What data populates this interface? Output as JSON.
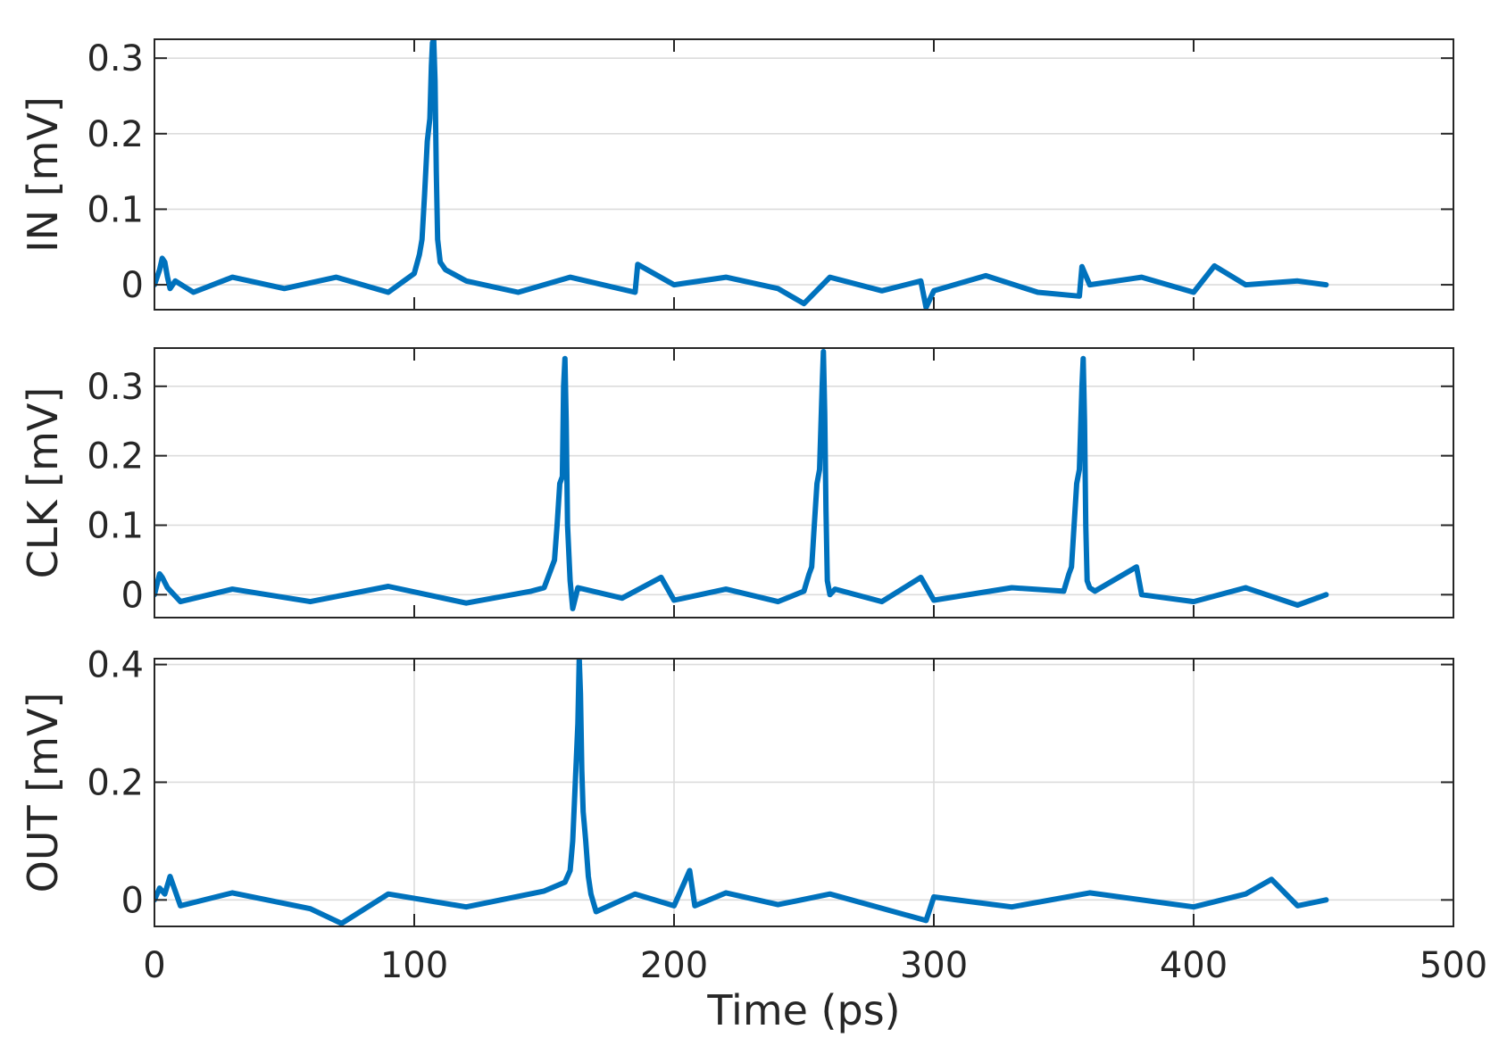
{
  "chart_data": [
    {
      "type": "line",
      "ylabel": "IN [mV]",
      "xlim": [
        0,
        500
      ],
      "ylim": [
        -0.033,
        0.325
      ],
      "yticks": [
        0,
        0.1,
        0.2,
        0.3
      ],
      "ytick_labels": [
        "0",
        "0.1",
        "0.2",
        "0.3"
      ],
      "grid": "horizontal",
      "color": "#0072BD",
      "series": [
        {
          "x": [
            0,
            2,
            3,
            4,
            5,
            6,
            8,
            15,
            30,
            50,
            70,
            90,
            96,
            100,
            102,
            103,
            104,
            105,
            106,
            106.6,
            107,
            107.5,
            108,
            108.5,
            109,
            110,
            112,
            120,
            140,
            160,
            185,
            186,
            200,
            220,
            240,
            250,
            260,
            280,
            295,
            297,
            300,
            320,
            340,
            356,
            357,
            360,
            380,
            400,
            408,
            420,
            440,
            451
          ],
          "y": [
            0,
            0.02,
            0.035,
            0.03,
            0.01,
            -0.005,
            0.005,
            -0.01,
            0.01,
            -0.005,
            0.01,
            -0.01,
            0.005,
            0.015,
            0.04,
            0.06,
            0.12,
            0.19,
            0.22,
            0.29,
            0.32,
            0.325,
            0.27,
            0.15,
            0.06,
            0.03,
            0.02,
            0.005,
            -0.01,
            0.01,
            -0.01,
            0.027,
            0,
            0.01,
            -0.005,
            -0.025,
            0.01,
            -0.008,
            0.005,
            -0.03,
            -0.008,
            0.012,
            -0.01,
            -0.015,
            0.024,
            0,
            0.01,
            -0.01,
            0.025,
            0,
            0.005,
            0
          ]
        }
      ]
    },
    {
      "type": "line",
      "ylabel": "CLK [mV]",
      "xlim": [
        0,
        500
      ],
      "ylim": [
        -0.033,
        0.355
      ],
      "yticks": [
        0,
        0.1,
        0.2,
        0.3
      ],
      "ytick_labels": [
        "0",
        "0.1",
        "0.2",
        "0.3"
      ],
      "grid": "horizontal",
      "color": "#0072BD",
      "series": [
        {
          "x": [
            0,
            1,
            2,
            3,
            5,
            10,
            30,
            60,
            90,
            120,
            145,
            150,
            152,
            154,
            155,
            156,
            157,
            157.5,
            158,
            158.5,
            159,
            160,
            161,
            163,
            180,
            195,
            200,
            220,
            240,
            250,
            252,
            253,
            254,
            255,
            256,
            257,
            257.5,
            258,
            258.5,
            259,
            260,
            262,
            280,
            295,
            300,
            330,
            350,
            352,
            353,
            354,
            355,
            356,
            357,
            357.5,
            358,
            358.5,
            359,
            360,
            362,
            378,
            380,
            400,
            420,
            440,
            451
          ],
          "y": [
            0,
            0.015,
            0.03,
            0.025,
            0.01,
            -0.01,
            0.008,
            -0.01,
            0.012,
            -0.012,
            0.005,
            0.01,
            0.03,
            0.05,
            0.1,
            0.16,
            0.17,
            0.3,
            0.34,
            0.25,
            0.1,
            0.02,
            -0.02,
            0.01,
            -0.005,
            0.025,
            -0.008,
            0.008,
            -0.01,
            0.005,
            0.03,
            0.04,
            0.1,
            0.16,
            0.18,
            0.3,
            0.35,
            0.26,
            0.12,
            0.02,
            0,
            0.008,
            -0.01,
            0.025,
            -0.008,
            0.01,
            0.005,
            0.03,
            0.04,
            0.1,
            0.16,
            0.18,
            0.3,
            0.34,
            0.25,
            0.1,
            0.02,
            0.01,
            0.005,
            0.04,
            0,
            -0.01,
            0.01,
            -0.015,
            0
          ]
        }
      ]
    },
    {
      "type": "line",
      "ylabel": "OUT [mV]",
      "xlabel": "Time (ps)",
      "xlim": [
        0,
        500
      ],
      "ylim": [
        -0.045,
        0.41
      ],
      "xticks": [
        0,
        100,
        200,
        300,
        400,
        500
      ],
      "xtick_labels": [
        "0",
        "100",
        "200",
        "300",
        "400",
        "500"
      ],
      "yticks": [
        0,
        0.2,
        0.4
      ],
      "ytick_labels": [
        "0",
        "0.2",
        "0.4"
      ],
      "grid": "both",
      "color": "#0072BD",
      "series": [
        {
          "x": [
            0,
            2,
            4,
            6,
            10,
            30,
            60,
            72,
            90,
            120,
            150,
            158,
            160,
            161,
            162,
            163,
            163.5,
            164,
            164.5,
            165,
            166,
            167,
            168,
            170,
            185,
            200,
            206,
            208,
            220,
            240,
            260,
            297,
            300,
            330,
            360,
            400,
            420,
            430,
            440,
            451
          ],
          "y": [
            0,
            0.02,
            0.01,
            0.04,
            -0.01,
            0.012,
            -0.015,
            -0.04,
            0.01,
            -0.012,
            0.015,
            0.03,
            0.05,
            0.1,
            0.2,
            0.3,
            0.41,
            0.35,
            0.22,
            0.15,
            0.1,
            0.04,
            0.01,
            -0.02,
            0.01,
            -0.01,
            0.05,
            -0.01,
            0.012,
            -0.008,
            0.01,
            -0.035,
            0.005,
            -0.012,
            0.012,
            -0.012,
            0.01,
            0.035,
            -0.01,
            0
          ]
        }
      ]
    }
  ]
}
